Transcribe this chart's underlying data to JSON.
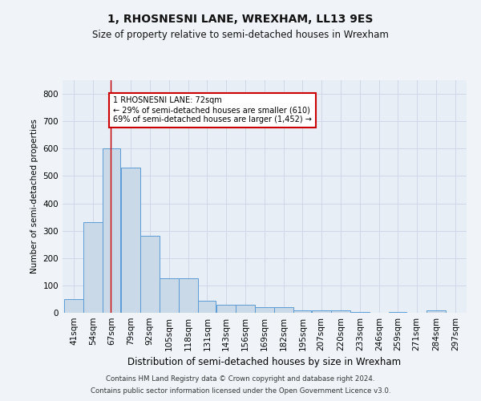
{
  "title1": "1, RHOSNESNI LANE, WREXHAM, LL13 9ES",
  "title2": "Size of property relative to semi-detached houses in Wrexham",
  "xlabel": "Distribution of semi-detached houses by size in Wrexham",
  "ylabel": "Number of semi-detached properties",
  "categories": [
    "41sqm",
    "54sqm",
    "67sqm",
    "79sqm",
    "92sqm",
    "105sqm",
    "118sqm",
    "131sqm",
    "143sqm",
    "156sqm",
    "169sqm",
    "182sqm",
    "195sqm",
    "207sqm",
    "220sqm",
    "233sqm",
    "246sqm",
    "259sqm",
    "271sqm",
    "284sqm",
    "297sqm"
  ],
  "values": [
    50,
    330,
    600,
    530,
    280,
    125,
    125,
    45,
    30,
    30,
    20,
    20,
    8,
    10,
    10,
    3,
    0,
    3,
    0,
    8,
    0
  ],
  "bar_color": "#c9d9e8",
  "bar_edge_color": "#5b9bd5",
  "bin_edges": [
    41,
    54,
    67,
    79,
    92,
    105,
    118,
    131,
    143,
    156,
    169,
    182,
    195,
    207,
    220,
    233,
    246,
    259,
    271,
    284,
    297,
    310
  ],
  "annotation_text": "1 RHOSNESNI LANE: 72sqm\n← 29% of semi-detached houses are smaller (610)\n69% of semi-detached houses are larger (1,452) →",
  "annotation_box_color": "#ffffff",
  "annotation_box_edge": "#cc0000",
  "vline_color": "#cc0000",
  "footer1": "Contains HM Land Registry data © Crown copyright and database right 2024.",
  "footer2": "Contains public sector information licensed under the Open Government Licence v3.0.",
  "ylim": [
    0,
    850
  ],
  "yticks": [
    0,
    100,
    200,
    300,
    400,
    500,
    600,
    700,
    800
  ],
  "grid_color": "#d0d8e8",
  "bg_color": "#e8eef5",
  "fig_bg_color": "#f0f4f8"
}
